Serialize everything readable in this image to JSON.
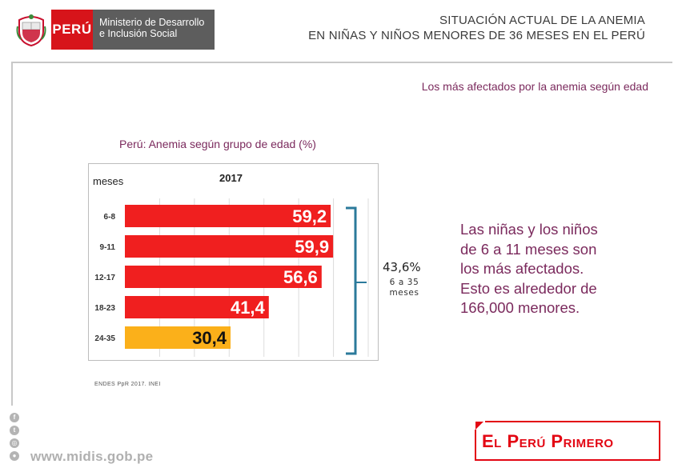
{
  "header": {
    "logo_country": "PERÚ",
    "ministry_line1": "Ministerio de Desarrollo",
    "ministry_line2": "e Inclusión Social",
    "title_line1": "SITUACIÓN ACTUAL DE LA ANEMIA",
    "title_line2": "EN NIÑAS Y NIÑOS MENORES DE 36 MESES EN EL PERÚ"
  },
  "subtitle": "Los más afectados por la anemia según edad",
  "chart_title": "Perú: Anemia según grupo de edad (%)",
  "chart_data": {
    "type": "bar",
    "orientation": "horizontal",
    "title": "Perú: Anemia según grupo de edad (%)",
    "ylabel": "meses",
    "series_label": "2017",
    "categories": [
      "6-8",
      "9-11",
      "12-17",
      "18-23",
      "24-35"
    ],
    "values": [
      59.2,
      59.9,
      56.6,
      41.4,
      30.4
    ],
    "value_labels": [
      "59,2",
      "59,9",
      "56,6",
      "41,4",
      "30,4"
    ],
    "colors": [
      "#f01f1f",
      "#f01f1f",
      "#f01f1f",
      "#f01f1f",
      "#fbb01a"
    ],
    "xlim": [
      0,
      70
    ],
    "grid": true,
    "bracket_value": "43,6%",
    "bracket_label": "6 a 35 meses"
  },
  "source": "ENDES PpR 2017. INEI",
  "callout": {
    "line1": "Las niñas y los niños",
    "line2": "de 6 a 11 meses son",
    "line3": "los más afectados.",
    "line4": "Esto es alrededor de",
    "line5": "166,000 menores."
  },
  "footer": {
    "url": "www.midis.gob.pe",
    "brand": "El Perú Primero",
    "social_icons": [
      "facebook-icon",
      "twitter-icon",
      "instagram-icon",
      "flickr-icon"
    ]
  },
  "colors": {
    "accent_red": "#d7141a",
    "bar_red": "#f01f1f",
    "bar_yellow": "#fbb01a",
    "purple_text": "#7b2a5d",
    "bracket": "#2b7a9b"
  }
}
